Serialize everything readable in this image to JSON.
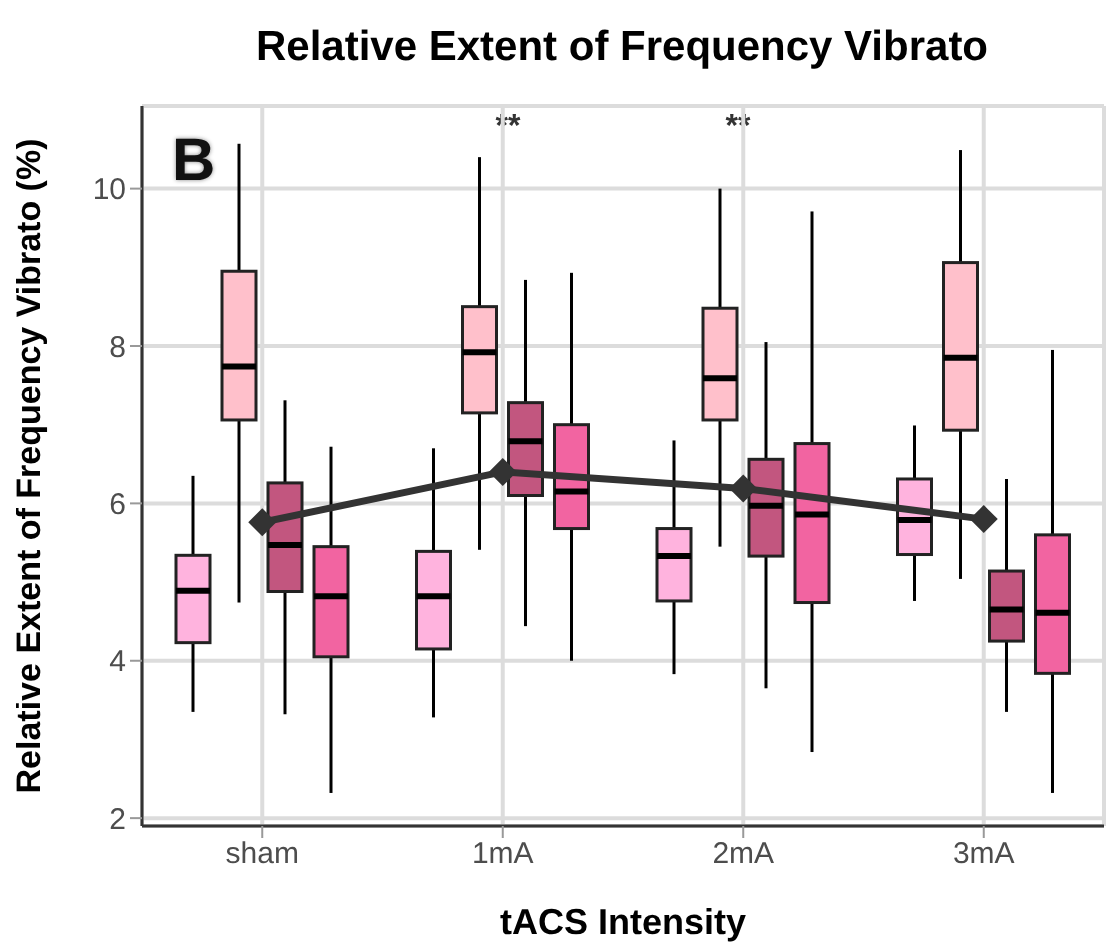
{
  "chart_data": {
    "type": "box",
    "title": "Relative Extent of Frequency Vibrato",
    "xlabel": "tACS Intensity",
    "ylabel": "Relative Extent of Frequency Vibrato (%)",
    "categories": [
      "sham",
      "1mA",
      "2mA",
      "3mA"
    ],
    "ylim": [
      1.9,
      11.05
    ],
    "yticks": [
      2,
      4,
      6,
      8,
      10
    ],
    "grid": true,
    "marker": "diamond",
    "annotations": [
      "B",
      "**",
      "**"
    ],
    "series": [
      {
        "color": "#ffb3de",
        "boxes": [
          {
            "low": 3.35,
            "q1": 4.23,
            "median": 4.89,
            "q3": 5.34,
            "high": 6.35
          },
          {
            "low": 3.28,
            "q1": 4.15,
            "median": 4.82,
            "q3": 5.39,
            "high": 6.7
          },
          {
            "low": 3.83,
            "q1": 4.76,
            "median": 5.33,
            "q3": 5.68,
            "high": 6.8
          },
          {
            "low": 4.76,
            "q1": 5.35,
            "median": 5.79,
            "q3": 6.31,
            "high": 6.99
          }
        ]
      },
      {
        "color": "#ffc0cb",
        "boxes": [
          {
            "low": 4.74,
            "q1": 7.06,
            "median": 7.74,
            "q3": 8.95,
            "high": 10.57
          },
          {
            "low": 5.41,
            "q1": 7.15,
            "median": 7.92,
            "q3": 8.5,
            "high": 10.4
          },
          {
            "low": 5.45,
            "q1": 7.06,
            "median": 7.59,
            "q3": 8.48,
            "high": 10.0
          },
          {
            "low": 5.04,
            "q1": 6.93,
            "median": 7.85,
            "q3": 9.06,
            "high": 10.49
          }
        ]
      },
      {
        "color": "#c2567f",
        "boxes": [
          {
            "low": 3.32,
            "q1": 4.88,
            "median": 5.47,
            "q3": 6.26,
            "high": 7.31
          },
          {
            "low": 4.44,
            "q1": 6.1,
            "median": 6.79,
            "q3": 7.28,
            "high": 8.84
          },
          {
            "low": 3.65,
            "q1": 5.33,
            "median": 5.97,
            "q3": 6.56,
            "high": 8.05
          },
          {
            "low": 3.35,
            "q1": 4.25,
            "median": 4.65,
            "q3": 5.14,
            "high": 6.31
          }
        ]
      },
      {
        "color": "#f264a1",
        "boxes": [
          {
            "low": 2.32,
            "q1": 4.05,
            "median": 4.82,
            "q3": 5.45,
            "high": 6.72
          },
          {
            "low": 4.0,
            "q1": 5.68,
            "median": 6.15,
            "q3": 7.0,
            "high": 8.93
          },
          {
            "low": 2.84,
            "q1": 4.74,
            "median": 5.86,
            "q3": 6.76,
            "high": 9.71
          },
          {
            "low": 2.32,
            "q1": 3.84,
            "median": 4.61,
            "q3": 5.6,
            "high": 7.95
          }
        ]
      },
      {
        "type": "line",
        "color": "#333333",
        "values": [
          5.76,
          6.4,
          6.19,
          5.8
        ]
      }
    ]
  }
}
